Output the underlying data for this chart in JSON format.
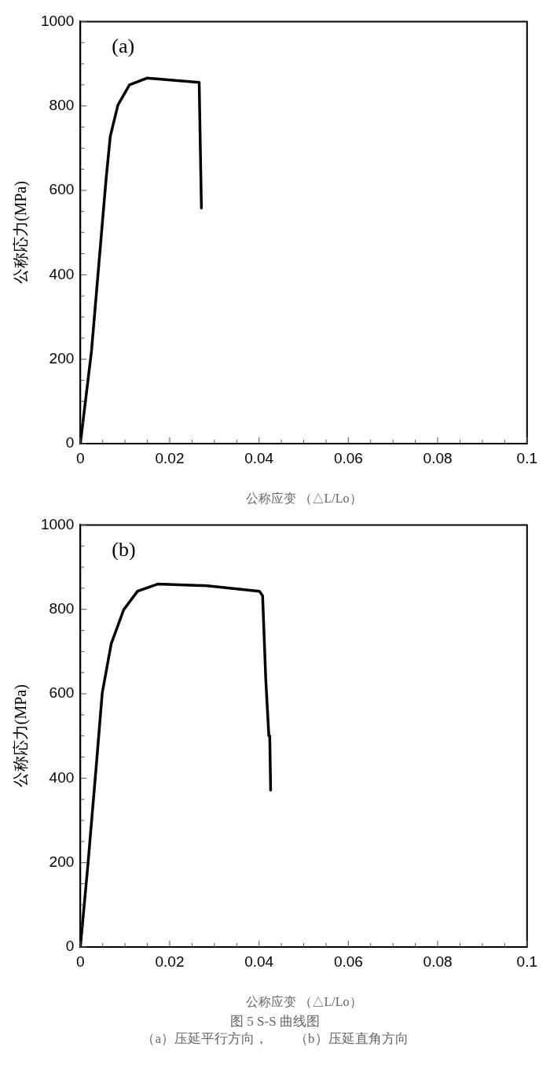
{
  "chart_data": [
    {
      "type": "line",
      "xlabel": "公称应变 （△L/Lo）",
      "ylabel": "公称応力(MPa)",
      "annotations": [
        "(a)"
      ],
      "color": "#000000",
      "marker": "none",
      "line_style": "solid",
      "grid": false,
      "legend": false,
      "x": [
        0,
        0.0025,
        0.00576,
        0.0067,
        0.0084,
        0.011,
        0.0149,
        0.0266,
        0.0271
      ],
      "values": [
        0,
        220,
        627,
        728,
        802,
        850,
        866,
        856,
        558
      ],
      "xlim": [
        0,
        0.1
      ],
      "ylim": [
        0,
        1000
      ],
      "xticks": [
        0,
        {
          "value": 0.005,
          "label": null
        },
        0.02,
        {
          "value": 0.01,
          "label": null
        },
        {
          "value": 0.015,
          "label": null
        },
        {
          "value": 0.025,
          "label": null
        },
        {
          "value": 0.03,
          "label": null
        },
        {
          "value": 0.035,
          "label": null
        },
        0.04,
        {
          "value": 0.045,
          "label": null
        },
        {
          "value": 0.05,
          "label": null
        },
        {
          "value": 0.055,
          "label": null
        },
        0.06,
        {
          "value": 0.065,
          "label": null
        },
        {
          "value": 0.07,
          "label": null
        },
        {
          "value": 0.075,
          "label": null
        },
        0.08,
        {
          "value": 0.085,
          "label": null
        },
        {
          "value": 0.09,
          "label": null
        },
        {
          "value": 0.095,
          "label": null
        },
        0.1
      ],
      "yticks": [
        0,
        {
          "value": 50,
          "label": null
        },
        {
          "value": 100,
          "label": null
        },
        {
          "value": 150,
          "label": null
        },
        200,
        {
          "value": 250,
          "label": null
        },
        {
          "value": 300,
          "label": null
        },
        {
          "value": 350,
          "label": null
        },
        400,
        {
          "value": 450,
          "label": null
        },
        {
          "value": 500,
          "label": null
        },
        {
          "value": 550,
          "label": null
        },
        600,
        {
          "value": 650,
          "label": null
        },
        {
          "value": 700,
          "label": null
        },
        {
          "value": 750,
          "label": null
        },
        800,
        {
          "value": 850,
          "label": null
        },
        {
          "value": 900,
          "label": null
        },
        {
          "value": 950,
          "label": null
        },
        1000
      ]
    },
    {
      "type": "line",
      "xlabel": "公称应变 （△L/Lo）",
      "ylabel": "公称応力(MPa)",
      "annotations": [
        "(b)",
        "图 5 S-S 曲线图",
        "（a）压延平行方向，　　（b）压延直角方向"
      ],
      "color": "#000000",
      "marker": "none",
      "line_style": "solid",
      "grid": false,
      "legend": false,
      "x": [
        0,
        0.0017,
        0.0036,
        0.0049,
        0.0069,
        0.0097,
        0.0128,
        0.0173,
        0.0284,
        0.0401,
        0.0408,
        0.0415,
        0.0422,
        0.0424,
        0.0426
      ],
      "values": [
        0,
        196,
        434,
        602,
        718,
        799,
        843,
        860,
        856,
        843,
        832,
        636,
        500,
        500,
        372
      ],
      "xlim": [
        0,
        0.1
      ],
      "ylim": [
        0,
        1000
      ],
      "xticks": [
        0,
        {
          "value": 0.005,
          "label": null
        },
        {
          "value": 0.01,
          "label": null
        },
        {
          "value": 0.015,
          "label": null
        },
        0.02,
        {
          "value": 0.025,
          "label": null
        },
        {
          "value": 0.03,
          "label": null
        },
        {
          "value": 0.035,
          "label": null
        },
        0.04,
        {
          "value": 0.045,
          "label": null
        },
        {
          "value": 0.05,
          "label": null
        },
        {
          "value": 0.055,
          "label": null
        },
        0.06,
        {
          "value": 0.065,
          "label": null
        },
        {
          "value": 0.07,
          "label": null
        },
        {
          "value": 0.075,
          "label": null
        },
        0.08,
        {
          "value": 0.085,
          "label": null
        },
        {
          "value": 0.09,
          "label": null
        },
        {
          "value": 0.095,
          "label": null
        },
        0.1
      ],
      "yticks": [
        0,
        {
          "value": 50,
          "label": null
        },
        {
          "value": 100,
          "label": null
        },
        {
          "value": 150,
          "label": null
        },
        200,
        {
          "value": 250,
          "label": null
        },
        {
          "value": 300,
          "label": null
        },
        {
          "value": 350,
          "label": null
        },
        400,
        {
          "value": 450,
          "label": null
        },
        {
          "value": 500,
          "label": null
        },
        {
          "value": 550,
          "label": null
        },
        600,
        {
          "value": 650,
          "label": null
        },
        {
          "value": 700,
          "label": null
        },
        {
          "value": 750,
          "label": null
        },
        800,
        {
          "value": 850,
          "label": null
        },
        {
          "value": 900,
          "label": null
        },
        {
          "value": 950,
          "label": null
        },
        1000
      ]
    }
  ]
}
